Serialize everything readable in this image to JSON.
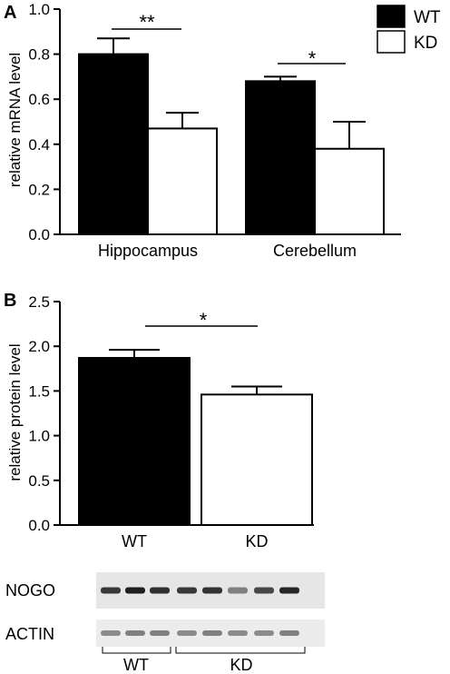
{
  "legend": {
    "items": [
      {
        "label": "WT",
        "color": "#000000"
      },
      {
        "label": "KD",
        "color": "#ffffff"
      }
    ]
  },
  "chart_data": [
    {
      "panel": "A",
      "type": "bar",
      "ylabel": "relative mRNA level",
      "ylim": [
        0,
        1.0
      ],
      "yticks": [
        "0.0",
        "0.2",
        "0.4",
        "0.6",
        "0.8",
        "1.0"
      ],
      "categories": [
        "Hippocampus",
        "Cerebellum"
      ],
      "series": [
        {
          "name": "WT",
          "values": [
            0.8,
            0.68
          ],
          "errors": [
            0.07,
            0.02
          ],
          "color": "#000000"
        },
        {
          "name": "KD",
          "values": [
            0.47,
            0.38
          ],
          "errors": [
            0.07,
            0.12
          ],
          "color": "#ffffff"
        }
      ],
      "significance": [
        "**",
        "*"
      ]
    },
    {
      "panel": "B",
      "type": "bar",
      "ylabel": "relative protein level",
      "ylim": [
        0,
        2.5
      ],
      "yticks": [
        "0.0",
        "0.5",
        "1.0",
        "1.5",
        "2.0",
        "2.5"
      ],
      "categories": [
        "WT",
        "KD"
      ],
      "values": [
        1.87,
        1.46
      ],
      "errors": [
        0.09,
        0.09
      ],
      "colors": [
        "#000000",
        "#ffffff"
      ],
      "significance": [
        "*"
      ]
    }
  ],
  "blot": {
    "rows": [
      {
        "label": "NOGO",
        "intensities": [
          0.78,
          0.88,
          0.82,
          0.78,
          0.8,
          0.5,
          0.72,
          0.85
        ]
      },
      {
        "label": "ACTIN",
        "intensities": [
          0.45,
          0.5,
          0.5,
          0.45,
          0.5,
          0.45,
          0.45,
          0.5
        ]
      }
    ],
    "groups": [
      {
        "label": "WT",
        "lanes": 3
      },
      {
        "label": "KD",
        "lanes": 5
      }
    ]
  }
}
